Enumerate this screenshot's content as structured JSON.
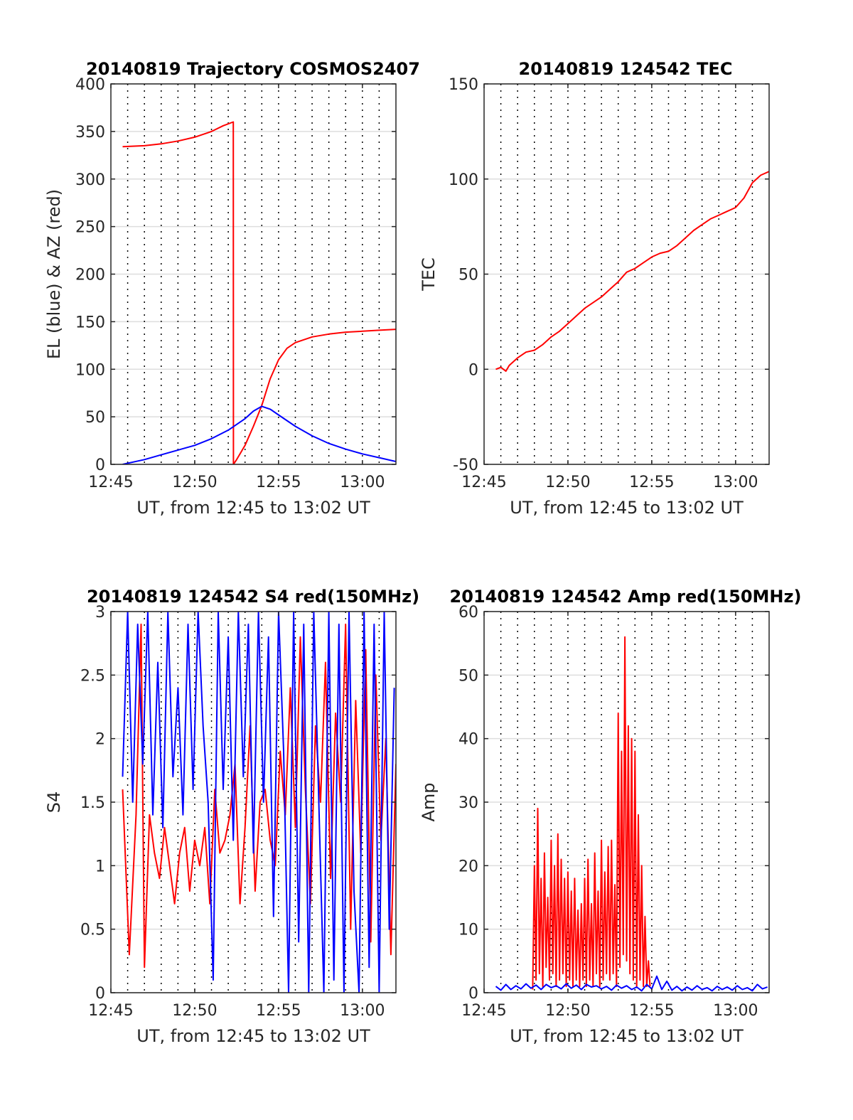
{
  "figure": {
    "background": "#ffffff",
    "line_colors": {
      "red": "#ff0000",
      "blue": "#0000ff"
    }
  },
  "chart_data": [
    {
      "type": "line",
      "title": "20140819 Trajectory COSMOS2407",
      "xlabel": "UT, from 12:45 to 13:02 UT",
      "ylabel": "EL (blue) & AZ (red)",
      "xlim": [
        0,
        17
      ],
      "ylim": [
        0,
        400
      ],
      "xticks": [
        0,
        5,
        10,
        15
      ],
      "xtick_labels": [
        "12:45",
        "12:50",
        "12:55",
        "13:00"
      ],
      "yticks": [
        0,
        50,
        100,
        150,
        200,
        250,
        300,
        350,
        400
      ],
      "ytick_labels": [
        "0",
        "50",
        "100",
        "150",
        "200",
        "250",
        "300",
        "350",
        "400"
      ],
      "minute_gridlines": [
        1,
        2,
        3,
        4,
        5,
        6,
        7,
        8,
        9,
        10,
        11,
        12,
        13,
        14,
        15,
        16
      ],
      "series": [
        {
          "name": "AZ",
          "color": "#ff0000",
          "x": [
            0.7,
            2,
            3,
            4,
            5,
            6,
            6.7,
            7.3,
            7.31,
            7.5,
            8,
            8.5,
            9,
            9.5,
            10,
            10.5,
            11,
            12,
            13,
            14,
            15,
            16,
            17
          ],
          "y": [
            334,
            335,
            337,
            340,
            344,
            350,
            356,
            360,
            0,
            5,
            20,
            40,
            62,
            90,
            110,
            122,
            128,
            134,
            137,
            139,
            140,
            141,
            142
          ]
        },
        {
          "name": "EL",
          "color": "#0000ff",
          "x": [
            0.7,
            2,
            3,
            4,
            5,
            6,
            7,
            8,
            8.5,
            9,
            9.5,
            10,
            11,
            12,
            13,
            14,
            15,
            16,
            17
          ],
          "y": [
            0,
            5,
            10,
            15,
            20,
            27,
            36,
            48,
            56,
            61,
            58,
            52,
            40,
            30,
            22,
            16,
            11,
            7,
            3
          ]
        }
      ]
    },
    {
      "type": "line",
      "title": "20140819 124542 TEC",
      "xlabel": "UT, from 12:45 to 13:02 UT",
      "ylabel": "TEC",
      "xlim": [
        0,
        17
      ],
      "ylim": [
        -50,
        150
      ],
      "xticks": [
        0,
        5,
        10,
        15
      ],
      "xtick_labels": [
        "12:45",
        "12:50",
        "12:55",
        "13:00"
      ],
      "yticks": [
        -50,
        0,
        50,
        100,
        150
      ],
      "ytick_labels": [
        "-50",
        "0",
        "50",
        "100",
        "150"
      ],
      "minute_gridlines": [
        1,
        2,
        3,
        4,
        5,
        6,
        7,
        8,
        9,
        10,
        11,
        12,
        13,
        14,
        15,
        16
      ],
      "series": [
        {
          "name": "TEC",
          "color": "#ff0000",
          "x": [
            0.7,
            1,
            1.3,
            1.5,
            2,
            2.5,
            3,
            3.5,
            4,
            4.5,
            5,
            5.5,
            6,
            6.5,
            7,
            7.5,
            8,
            8.5,
            9,
            9.5,
            10,
            10.5,
            11,
            11.5,
            12,
            12.5,
            13,
            13.5,
            14,
            14.5,
            15,
            15.5,
            16,
            16.5,
            17
          ],
          "y": [
            0,
            1,
            -1,
            2,
            6,
            9,
            10,
            13,
            17,
            20,
            24,
            28,
            32,
            35,
            38,
            42,
            46,
            51,
            53,
            56,
            59,
            61,
            62,
            65,
            69,
            73,
            76,
            79,
            81,
            83,
            85,
            90,
            98,
            102,
            104
          ]
        }
      ]
    },
    {
      "type": "line",
      "title": "20140819 124542 S4 red(150MHz)",
      "xlabel": "UT, from 12:45 to 13:02 UT",
      "ylabel": "S4",
      "xlim": [
        0,
        17
      ],
      "ylim": [
        0,
        3
      ],
      "xticks": [
        0,
        5,
        10,
        15
      ],
      "xtick_labels": [
        "12:45",
        "12:50",
        "12:55",
        "13:00"
      ],
      "yticks": [
        0,
        0.5,
        1,
        1.5,
        2,
        2.5,
        3
      ],
      "ytick_labels": [
        "0",
        "0.5",
        "1",
        "1.5",
        "2",
        "2.5",
        "3"
      ],
      "minute_gridlines": [
        1,
        2,
        3,
        4,
        5,
        6,
        7,
        8,
        9,
        10,
        11,
        12,
        13,
        14,
        15,
        16
      ],
      "series": [
        {
          "name": "red",
          "color": "#ff0000",
          "x": [
            0.7,
            1.1,
            1.5,
            1.8,
            2.0,
            2.3,
            2.6,
            2.9,
            3.2,
            3.5,
            3.8,
            4.1,
            4.4,
            4.7,
            5.0,
            5.3,
            5.6,
            5.9,
            6.2,
            6.5,
            6.8,
            7.1,
            7.4,
            7.7,
            8.0,
            8.3,
            8.6,
            8.9,
            9.2,
            9.5,
            9.8,
            10.1,
            10.4,
            10.7,
            11.0,
            11.3,
            11.6,
            11.9,
            12.2,
            12.5,
            12.8,
            13.1,
            13.4,
            13.7,
            14.0,
            14.3,
            14.6,
            14.9,
            15.2,
            15.5,
            15.8,
            16.1,
            16.4,
            16.7,
            17.0
          ],
          "y": [
            1.6,
            0.3,
            1.4,
            2.9,
            0.2,
            1.4,
            1.1,
            0.9,
            1.3,
            1.0,
            0.7,
            1.1,
            1.3,
            0.8,
            1.2,
            1.0,
            1.3,
            0.7,
            1.6,
            1.1,
            1.2,
            1.4,
            1.8,
            0.7,
            1.3,
            2.1,
            0.8,
            1.5,
            1.6,
            1.2,
            1.0,
            1.9,
            1.4,
            2.4,
            1.3,
            2.8,
            1.6,
            0.7,
            2.1,
            1.5,
            2.6,
            0.9,
            2.2,
            1.5,
            2.9,
            0.5,
            2.3,
            1.1,
            2.7,
            0.4,
            2.5,
            1.2,
            2.0,
            0.3,
            1.8
          ]
        },
        {
          "name": "blue",
          "color": "#0000ff",
          "x": [
            0.7,
            1.0,
            1.3,
            1.6,
            1.9,
            2.2,
            2.5,
            2.8,
            3.1,
            3.4,
            3.7,
            4.0,
            4.3,
            4.6,
            4.9,
            5.2,
            5.5,
            5.8,
            6.1,
            6.4,
            6.7,
            7.0,
            7.3,
            7.6,
            7.9,
            8.2,
            8.5,
            8.8,
            9.1,
            9.4,
            9.7,
            10.0,
            10.3,
            10.6,
            10.9,
            11.2,
            11.5,
            11.8,
            12.1,
            12.4,
            12.7,
            13.0,
            13.3,
            13.6,
            13.9,
            14.2,
            14.5,
            14.8,
            15.1,
            15.4,
            15.7,
            16.0,
            16.3,
            16.6,
            16.9
          ],
          "y": [
            1.7,
            3.0,
            1.5,
            2.9,
            1.8,
            3.0,
            1.4,
            2.6,
            1.3,
            3.0,
            1.7,
            2.4,
            1.4,
            2.9,
            1.6,
            3.0,
            2.1,
            1.5,
            0.1,
            3.0,
            1.6,
            2.8,
            1.2,
            3.0,
            1.7,
            2.9,
            1.1,
            3.0,
            1.5,
            2.8,
            0.6,
            3.0,
            1.9,
            0.0,
            3.0,
            0.4,
            2.9,
            0.0,
            3.0,
            1.5,
            0.0,
            3.0,
            0.1,
            2.9,
            0.0,
            3.0,
            0.8,
            0.0,
            3.0,
            0.2,
            2.9,
            0.0,
            3.0,
            0.5,
            2.4
          ]
        }
      ]
    },
    {
      "type": "line",
      "title": "20140819 124542 Amp red(150MHz)",
      "xlabel": "UT, from 12:45 to 13:02 UT",
      "ylabel": "Amp",
      "xlim": [
        0,
        17
      ],
      "ylim": [
        0,
        60
      ],
      "xticks": [
        0,
        5,
        10,
        15
      ],
      "xtick_labels": [
        "12:45",
        "12:50",
        "12:55",
        "13:00"
      ],
      "yticks": [
        0,
        10,
        20,
        30,
        40,
        50,
        60
      ],
      "ytick_labels": [
        "0",
        "10",
        "20",
        "30",
        "40",
        "50",
        "60"
      ],
      "minute_gridlines": [
        1,
        2,
        3,
        4,
        5,
        6,
        7,
        8,
        9,
        10,
        11,
        12,
        13,
        14,
        15,
        16
      ],
      "series": [
        {
          "name": "red",
          "color": "#ff0000",
          "x": [
            2.9,
            3.0,
            3.1,
            3.2,
            3.3,
            3.4,
            3.5,
            3.6,
            3.7,
            3.8,
            3.9,
            4.0,
            4.1,
            4.2,
            4.3,
            4.4,
            4.5,
            4.6,
            4.7,
            4.8,
            4.9,
            5.0,
            5.1,
            5.2,
            5.3,
            5.4,
            5.5,
            5.6,
            5.7,
            5.8,
            5.9,
            6.0,
            6.1,
            6.2,
            6.3,
            6.4,
            6.5,
            6.6,
            6.7,
            6.8,
            6.9,
            7.0,
            7.1,
            7.2,
            7.3,
            7.4,
            7.5,
            7.6,
            7.7,
            7.8,
            7.9,
            8.0,
            8.1,
            8.2,
            8.3,
            8.4,
            8.5,
            8.6,
            8.7,
            8.8,
            8.9,
            9.0,
            9.1,
            9.2,
            9.3,
            9.4,
            9.5,
            9.6,
            9.7,
            9.8,
            9.9
          ],
          "y": [
            0.5,
            20,
            2,
            29,
            3,
            18,
            1,
            22,
            4,
            15,
            2,
            24,
            3,
            20,
            1,
            25,
            2,
            21,
            3,
            18,
            1,
            19,
            2,
            16,
            1,
            18,
            2,
            13,
            1,
            14,
            2,
            18,
            1,
            21,
            2,
            14,
            1,
            22,
            3,
            16,
            1,
            24,
            2,
            19,
            3,
            23,
            2,
            24,
            3,
            17,
            1,
            44,
            4,
            38,
            6,
            56,
            5,
            42,
            3,
            40,
            2,
            38,
            1,
            28,
            2,
            20,
            1,
            12,
            1,
            5,
            1
          ]
        },
        {
          "name": "blue",
          "color": "#0000ff",
          "x": [
            0.7,
            1.0,
            1.3,
            1.6,
            1.9,
            2.2,
            2.5,
            2.8,
            3.1,
            3.4,
            3.7,
            4.0,
            4.3,
            4.6,
            4.9,
            5.2,
            5.5,
            5.8,
            6.1,
            6.4,
            6.7,
            7.0,
            7.3,
            7.6,
            7.9,
            8.2,
            8.5,
            8.8,
            9.1,
            9.4,
            9.7,
            10.0,
            10.3,
            10.6,
            10.9,
            11.2,
            11.5,
            11.8,
            12.1,
            12.4,
            12.7,
            13.0,
            13.3,
            13.6,
            13.9,
            14.2,
            14.5,
            14.8,
            15.1,
            15.4,
            15.7,
            16.0,
            16.3,
            16.6,
            16.9
          ],
          "y": [
            1.0,
            0.4,
            1.3,
            0.5,
            1.1,
            0.6,
            1.4,
            0.7,
            1.2,
            0.5,
            1.3,
            0.8,
            1.1,
            0.6,
            1.4,
            0.7,
            1.2,
            0.5,
            1.3,
            0.9,
            1.1,
            0.6,
            1.0,
            0.4,
            1.2,
            0.7,
            1.1,
            0.5,
            0.9,
            0.3,
            1.3,
            0.6,
            2.6,
            0.5,
            1.8,
            0.4,
            1.0,
            0.3,
            0.9,
            0.4,
            1.1,
            0.5,
            0.8,
            0.3,
            1.0,
            0.5,
            0.9,
            0.4,
            1.1,
            0.5,
            0.8,
            0.3,
            1.3,
            0.6,
            0.9
          ]
        }
      ]
    }
  ]
}
